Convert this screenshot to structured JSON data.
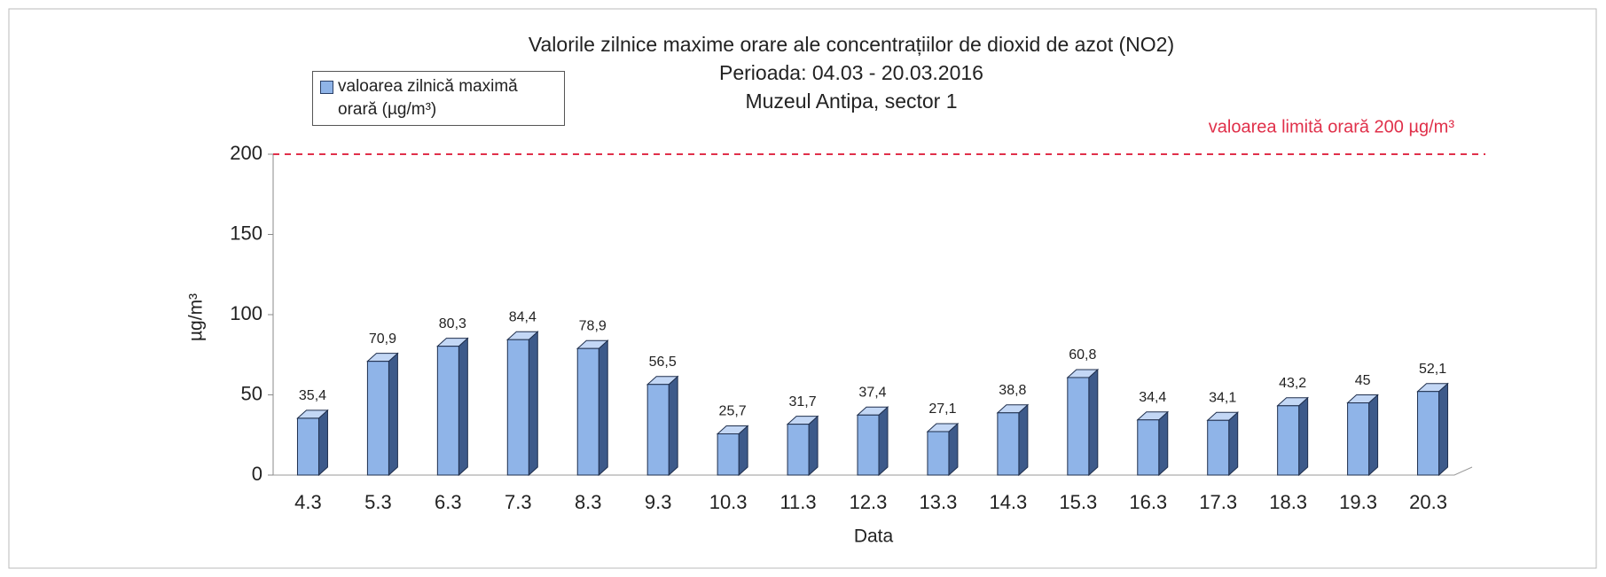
{
  "chart_data": {
    "type": "bar",
    "title": "Valorile zilnice maxime orare ale concentrațiilor de dioxid de azot (NO2)",
    "subtitle": "Perioada: 04.03 - 20.03.2016",
    "location": "Muzeul Antipa, sector 1",
    "x_label": "Data",
    "y_label": "µg/m³",
    "categories": [
      "4.3",
      "5.3",
      "6.3",
      "7.3",
      "8.3",
      "9.3",
      "10.3",
      "11.3",
      "12.3",
      "13.3",
      "14.3",
      "15.3",
      "16.3",
      "17.3",
      "18.3",
      "19.3",
      "20.3"
    ],
    "series": [
      {
        "name": "valoarea zilnică maximă orară (µg/m³)",
        "color": "#8fb4e8",
        "values": [
          35.4,
          70.9,
          80.3,
          84.4,
          78.9,
          56.5,
          25.7,
          31.7,
          37.4,
          27.1,
          38.8,
          60.8,
          34.4,
          34.1,
          43.2,
          45,
          52.1
        ],
        "value_labels": [
          "35,4",
          "70,9",
          "80,3",
          "84,4",
          "78,9",
          "56,5",
          "25,7",
          "31,7",
          "37,4",
          "27,1",
          "38,8",
          "60,8",
          "34,4",
          "34,1",
          "43,2",
          "45",
          "52,1"
        ]
      }
    ],
    "limit_line": {
      "value": 200,
      "label": "valoarea limită orară 200 µg/m³",
      "color": "#e0304a"
    },
    "ylim": [
      0,
      200
    ],
    "yticks": [
      0,
      50,
      100,
      150,
      200
    ],
    "grid": false
  }
}
